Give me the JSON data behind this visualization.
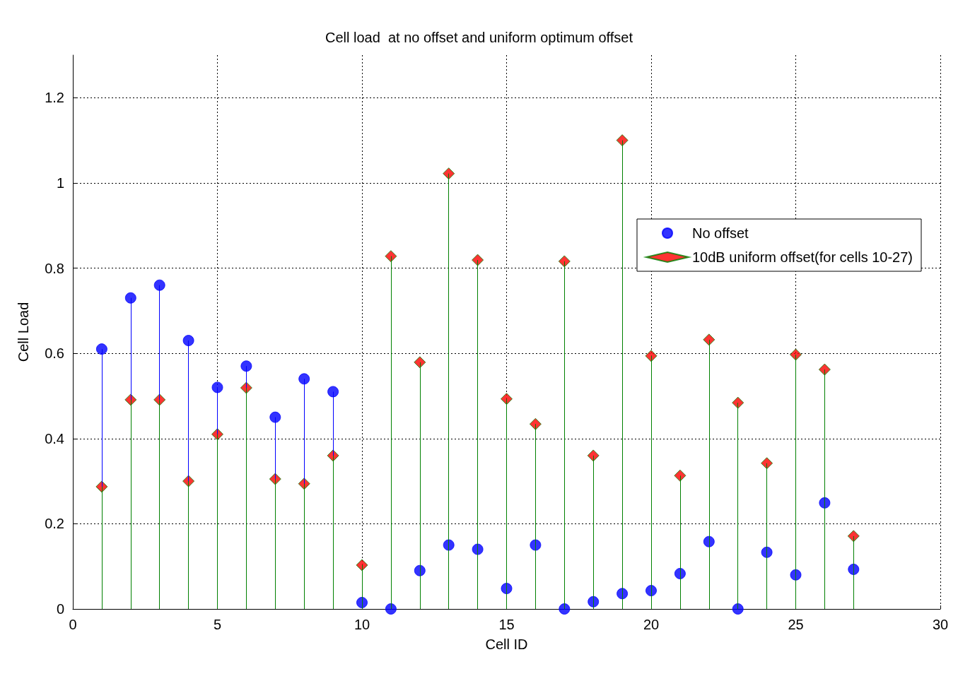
{
  "chart_data": {
    "type": "lollipop",
    "title": "Cell load  at no offset and uniform optimum offset",
    "xlabel": "Cell ID",
    "ylabel": "Cell Load",
    "x": [
      1,
      2,
      3,
      4,
      5,
      6,
      7,
      8,
      9,
      10,
      11,
      12,
      13,
      14,
      15,
      16,
      17,
      18,
      19,
      20,
      21,
      22,
      23,
      24,
      25,
      26,
      27
    ],
    "series": [
      {
        "name": "No offset",
        "color": "#0000ff",
        "marker": "circle",
        "values": [
          0.61,
          0.73,
          0.76,
          0.63,
          0.52,
          0.57,
          0.45,
          0.54,
          0.51,
          0.015,
          0,
          0.09,
          0.15,
          0.14,
          0.048,
          0.15,
          0,
          0.017,
          0.036,
          0.043,
          0.083,
          0.158,
          0,
          0.133,
          0.08,
          0.249,
          0.093
        ]
      },
      {
        "name": "10dB uniform offset(for cells 10-27)",
        "color": "#ff0000",
        "marker": "diamond",
        "values": [
          0.287,
          0.491,
          0.491,
          0.3,
          0.41,
          0.519,
          0.305,
          0.294,
          0.36,
          0.103,
          0.828,
          0.579,
          1.022,
          0.819,
          0.493,
          0.434,
          0.816,
          0.36,
          1.1,
          0.594,
          0.313,
          0.632,
          0.484,
          0.342,
          0.597,
          0.562,
          0.171
        ]
      }
    ],
    "xlim": [
      0,
      30
    ],
    "xticks": [
      0,
      5,
      10,
      15,
      20,
      25,
      30
    ],
    "ylim": [
      0,
      1.3
    ],
    "yticks": [
      0,
      0.2,
      0.4,
      0.6,
      0.8,
      1,
      1.2
    ],
    "grid": true,
    "legend": "right"
  }
}
